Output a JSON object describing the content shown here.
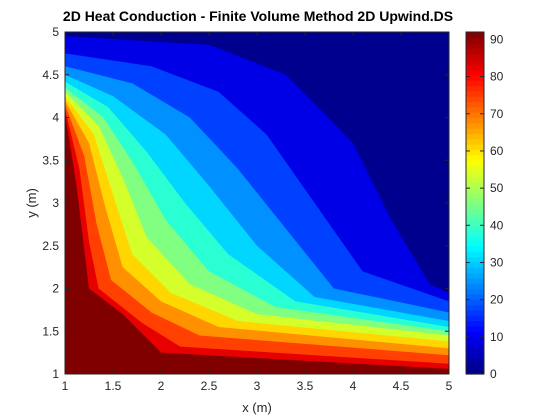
{
  "chart_data": {
    "type": "contour",
    "title": "2D Heat Conduction - Finite Volume Method 2D Upwind.DS",
    "xlabel": "x (m)",
    "ylabel": "y (m)",
    "xlim": [
      1,
      5
    ],
    "ylim": [
      1,
      5
    ],
    "x_ticks": [
      "1",
      "1.5",
      "2",
      "2.5",
      "3",
      "3.5",
      "4",
      "4.5",
      "5"
    ],
    "y_ticks": [
      "1",
      "1.5",
      "2",
      "2.5",
      "3",
      "3.5",
      "4",
      "4.5",
      "5"
    ],
    "colorbar": {
      "colormap": "jet",
      "clim": [
        0,
        92
      ],
      "ticks": [
        "0",
        "10",
        "20",
        "30",
        "40",
        "50",
        "60",
        "70",
        "80",
        "90"
      ]
    },
    "levels": [
      {
        "value": 0,
        "color": "#00008f"
      },
      {
        "value": 8,
        "color": "#0000e6"
      },
      {
        "value": 16,
        "color": "#0040ff"
      },
      {
        "value": 24,
        "color": "#0090ff"
      },
      {
        "value": 32,
        "color": "#00d6ff"
      },
      {
        "value": 40,
        "color": "#2affd4"
      },
      {
        "value": 48,
        "color": "#80ff80"
      },
      {
        "value": 56,
        "color": "#d4ff2a"
      },
      {
        "value": 64,
        "color": "#ffd600"
      },
      {
        "value": 72,
        "color": "#ff9000"
      },
      {
        "value": 80,
        "color": "#ff4000"
      },
      {
        "value": 88,
        "color": "#e60000"
      },
      {
        "value": 92,
        "color": "#800000"
      }
    ],
    "contour_lines": [
      {
        "level": 8,
        "points": [
          [
            1,
            4.95
          ],
          [
            2.5,
            4.85
          ],
          [
            3.3,
            4.5
          ],
          [
            4,
            3.7
          ],
          [
            4.4,
            2.8
          ],
          [
            4.8,
            2.05
          ],
          [
            5,
            1.95
          ]
        ]
      },
      {
        "level": 16,
        "points": [
          [
            1,
            4.75
          ],
          [
            1.9,
            4.6
          ],
          [
            2.6,
            4.3
          ],
          [
            3.1,
            3.8
          ],
          [
            3.6,
            3
          ],
          [
            4.1,
            2.2
          ],
          [
            5,
            1.85
          ]
        ]
      },
      {
        "level": 24,
        "points": [
          [
            1,
            4.6
          ],
          [
            1.7,
            4.4
          ],
          [
            2.3,
            4
          ],
          [
            2.8,
            3.4
          ],
          [
            3.3,
            2.7
          ],
          [
            3.8,
            2
          ],
          [
            5,
            1.72
          ]
        ]
      },
      {
        "level": 32,
        "points": [
          [
            1,
            4.5
          ],
          [
            1.5,
            4.25
          ],
          [
            2.05,
            3.8
          ],
          [
            2.5,
            3.2
          ],
          [
            3,
            2.5
          ],
          [
            3.6,
            1.9
          ],
          [
            5,
            1.62
          ]
        ]
      },
      {
        "level": 40,
        "points": [
          [
            1,
            4.42
          ],
          [
            1.45,
            4.12
          ],
          [
            1.85,
            3.6
          ],
          [
            2.25,
            3
          ],
          [
            2.7,
            2.4
          ],
          [
            3.4,
            1.85
          ],
          [
            5,
            1.55
          ]
        ]
      },
      {
        "level": 48,
        "points": [
          [
            1,
            4.35
          ],
          [
            1.4,
            4
          ],
          [
            1.72,
            3.45
          ],
          [
            2.05,
            2.8
          ],
          [
            2.5,
            2.2
          ],
          [
            3.2,
            1.78
          ],
          [
            5,
            1.5
          ]
        ]
      },
      {
        "level": 56,
        "points": [
          [
            1,
            4.3
          ],
          [
            1.35,
            3.9
          ],
          [
            1.6,
            3.3
          ],
          [
            1.85,
            2.6
          ],
          [
            2.3,
            2.05
          ],
          [
            3,
            1.7
          ],
          [
            5,
            1.45
          ]
        ]
      },
      {
        "level": 64,
        "points": [
          [
            1,
            4.25
          ],
          [
            1.3,
            3.8
          ],
          [
            1.5,
            3.1
          ],
          [
            1.7,
            2.4
          ],
          [
            2.1,
            1.95
          ],
          [
            2.8,
            1.62
          ],
          [
            5,
            1.38
          ]
        ]
      },
      {
        "level": 72,
        "points": [
          [
            1,
            4.2
          ],
          [
            1.25,
            3.7
          ],
          [
            1.42,
            2.95
          ],
          [
            1.6,
            2.25
          ],
          [
            2,
            1.85
          ],
          [
            2.6,
            1.55
          ],
          [
            5,
            1.3
          ]
        ]
      },
      {
        "level": 80,
        "points": [
          [
            1,
            4.15
          ],
          [
            1.2,
            3.55
          ],
          [
            1.33,
            2.75
          ],
          [
            1.48,
            2.1
          ],
          [
            1.9,
            1.72
          ],
          [
            2.4,
            1.45
          ],
          [
            5,
            1.22
          ]
        ]
      },
      {
        "level": 88,
        "points": [
          [
            1,
            4.1
          ],
          [
            1.15,
            3.4
          ],
          [
            1.25,
            2.55
          ],
          [
            1.35,
            2
          ],
          [
            1.8,
            1.6
          ],
          [
            2.2,
            1.32
          ],
          [
            5,
            1.12
          ]
        ]
      }
    ]
  }
}
